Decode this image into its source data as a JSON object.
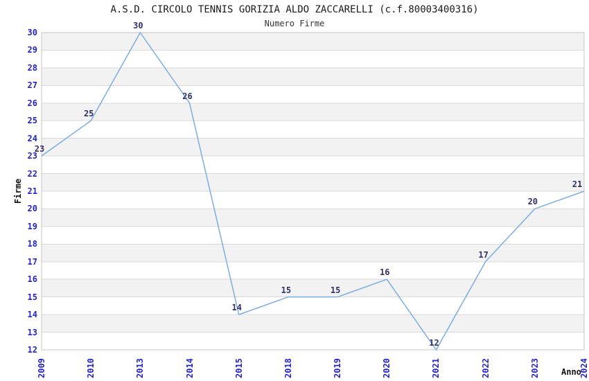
{
  "chart_data": {
    "type": "line",
    "title": "A.S.D. CIRCOLO TENNIS GORIZIA ALDO ZACCARELLI (c.f.80003400316)",
    "subtitle": "Numero Firme",
    "xlabel": "Anno",
    "ylabel": "Firme",
    "categories": [
      "2009",
      "2010",
      "2013",
      "2014",
      "2015",
      "2018",
      "2019",
      "2020",
      "2021",
      "2022",
      "2023",
      "2024"
    ],
    "values": [
      23,
      25,
      30,
      26,
      14,
      15,
      15,
      16,
      12,
      17,
      20,
      21
    ],
    "ylim": [
      12,
      30
    ],
    "y_tick_step": 1,
    "grid": "horizontal-bands",
    "legend": "none",
    "colors": {
      "line": "#7aade0",
      "band_fill": "#f2f2f2",
      "gridline": "#d9d9d9",
      "plot_border": "#c4c4c4",
      "tick_label": "#2424cc",
      "point_label": "#30306a"
    }
  }
}
